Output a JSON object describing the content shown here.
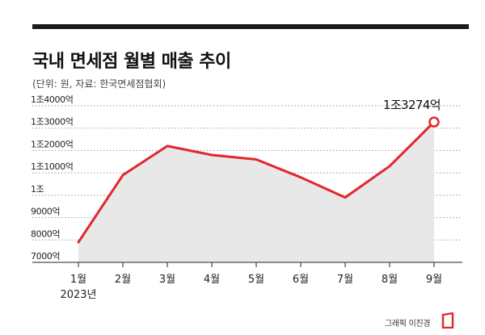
{
  "header": {
    "title": "국내 면세점 월별 매출 추이",
    "subtitle": "(단위: 원, 자료: 한국면세점협회)"
  },
  "chart_data": {
    "type": "area",
    "title": "국내 면세점 월별 매출 추이",
    "subtitle": "(단위: 원, 자료: 한국면세점협회)",
    "categories": [
      "1월",
      "2월",
      "3월",
      "4월",
      "5월",
      "6월",
      "7월",
      "8월",
      "9월"
    ],
    "year_label": "2023년",
    "y_tick_values": [
      7000,
      8000,
      9000,
      10000,
      11000,
      12000,
      13000,
      14000
    ],
    "y_tick_labels": [
      "7000억",
      "8000억",
      "9000억",
      "1조",
      "1조1000억",
      "1조2000억",
      "1조3000억",
      "1조4000억"
    ],
    "ylim": [
      7000,
      14000
    ],
    "series": [
      {
        "values": [
          7900,
          10900,
          12200,
          11800,
          11600,
          10800,
          9900,
          11300,
          13274
        ]
      }
    ],
    "annotation": {
      "category": "9월",
      "value": 13274,
      "label": "1조3274억"
    },
    "colors": {
      "line": "#e3262b",
      "fill": "#e8e8e8",
      "grid": "#9a9a9a",
      "axis": "#222222"
    },
    "grid": true
  },
  "footer": {
    "credit": "그래픽 이진경"
  }
}
